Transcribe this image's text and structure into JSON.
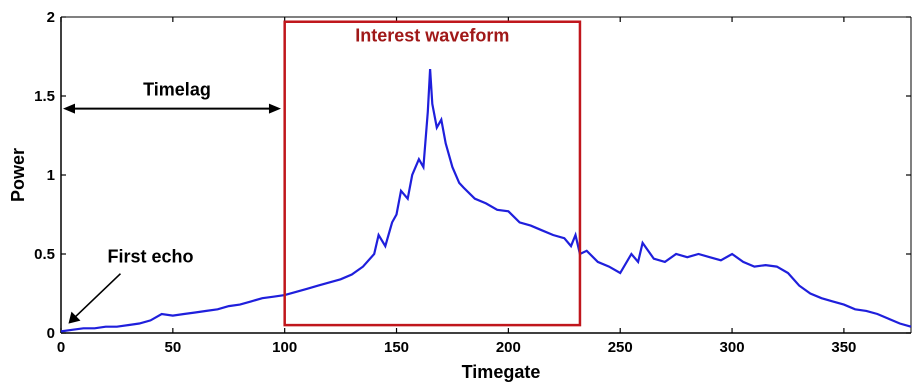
{
  "chart_data": {
    "type": "line",
    "title": "",
    "xlabel": "Timegate",
    "ylabel": "Power",
    "xlim": [
      0,
      380
    ],
    "ylim": [
      0,
      2
    ],
    "xticks": [
      0,
      50,
      100,
      150,
      200,
      250,
      300,
      350
    ],
    "yticks": [
      0,
      0.5,
      1,
      1.5,
      2
    ],
    "ytick_labels": [
      "0",
      "0.5",
      "1",
      "1.5",
      "2"
    ],
    "grid": false,
    "series": [
      {
        "color": "#1f1fdc",
        "x": [
          0,
          5,
          10,
          15,
          20,
          25,
          30,
          35,
          40,
          45,
          50,
          55,
          60,
          65,
          70,
          75,
          80,
          85,
          90,
          95,
          100,
          105,
          110,
          115,
          120,
          125,
          130,
          135,
          140,
          142,
          145,
          148,
          150,
          152,
          155,
          157,
          160,
          162,
          164,
          165,
          166,
          168,
          170,
          172,
          175,
          178,
          180,
          185,
          190,
          195,
          200,
          205,
          210,
          215,
          220,
          225,
          228,
          230,
          232,
          235,
          240,
          245,
          250,
          255,
          258,
          260,
          265,
          270,
          275,
          280,
          285,
          290,
          295,
          300,
          305,
          310,
          315,
          320,
          325,
          330,
          335,
          340,
          345,
          350,
          355,
          360,
          365,
          370,
          375,
          380
        ],
        "values": [
          0.01,
          0.02,
          0.03,
          0.03,
          0.04,
          0.04,
          0.05,
          0.06,
          0.08,
          0.12,
          0.11,
          0.12,
          0.13,
          0.14,
          0.15,
          0.17,
          0.18,
          0.2,
          0.22,
          0.23,
          0.24,
          0.26,
          0.28,
          0.3,
          0.32,
          0.34,
          0.37,
          0.42,
          0.5,
          0.62,
          0.55,
          0.7,
          0.75,
          0.9,
          0.85,
          1.0,
          1.1,
          1.05,
          1.4,
          1.67,
          1.45,
          1.3,
          1.35,
          1.2,
          1.05,
          0.95,
          0.92,
          0.85,
          0.82,
          0.78,
          0.77,
          0.7,
          0.68,
          0.65,
          0.62,
          0.6,
          0.55,
          0.62,
          0.5,
          0.52,
          0.45,
          0.42,
          0.38,
          0.5,
          0.45,
          0.57,
          0.47,
          0.45,
          0.5,
          0.48,
          0.5,
          0.48,
          0.46,
          0.5,
          0.45,
          0.42,
          0.43,
          0.42,
          0.38,
          0.3,
          0.25,
          0.22,
          0.2,
          0.18,
          0.15,
          0.14,
          0.12,
          0.09,
          0.06,
          0.04
        ]
      }
    ],
    "annotations": {
      "box_label": "Interest waveform",
      "box_x": [
        100,
        232
      ],
      "box_y": [
        0.05,
        1.97
      ],
      "timelag_label": "Timelag",
      "timelag_x": [
        0,
        97
      ],
      "timelag_y": 1.42,
      "first_echo_label": "First echo",
      "first_echo_point": [
        2,
        0.04
      ]
    },
    "colors": {
      "line": "#1f1fdc",
      "box": "#c0161c",
      "box_label": "#a01818"
    }
  }
}
